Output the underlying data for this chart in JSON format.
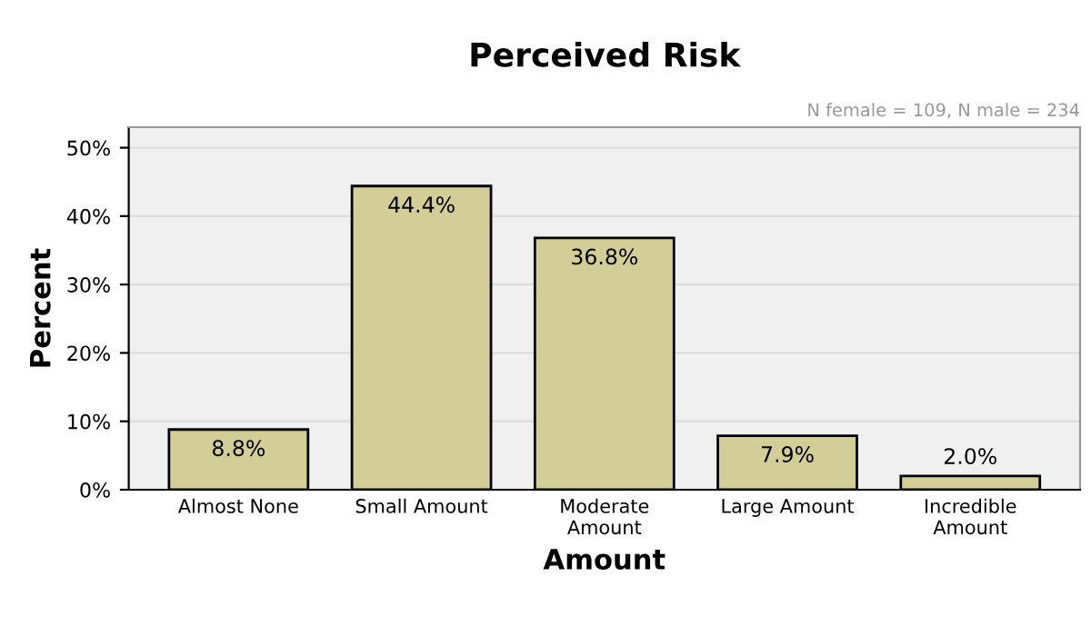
{
  "chart_data": {
    "type": "bar",
    "title": "Perceived Risk",
    "xlabel": "Amount",
    "ylabel": "Percent",
    "annotations": [
      "N female = 109, N male = 234"
    ],
    "categories": [
      "Almost None",
      "Small Amount",
      "Moderate\nAmount",
      "Large Amount",
      "Incredible\nAmount"
    ],
    "values": [
      8.8,
      44.4,
      36.8,
      7.9,
      2.0
    ],
    "value_labels": [
      "8.8%",
      "44.4%",
      "36.8%",
      "7.9%",
      "2.0%"
    ],
    "color": "#d3ce97",
    "ylim": [
      0,
      53
    ],
    "yticks": [
      {
        "value": 0,
        "label": "0%"
      },
      {
        "value": 10,
        "label": "10%"
      },
      {
        "value": 20,
        "label": "20%"
      },
      {
        "value": 30,
        "label": "30%"
      },
      {
        "value": 40,
        "label": "40%"
      },
      {
        "value": 50,
        "label": "50%"
      }
    ],
    "grid": "y"
  }
}
